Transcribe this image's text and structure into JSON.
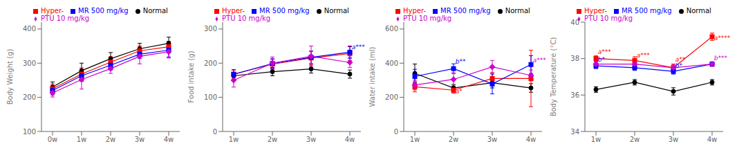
{
  "chart_data": [
    {
      "type": "line",
      "ylabel": "Body Weight (g)",
      "categories": [
        "0w",
        "1w",
        "2w",
        "3w",
        "4w"
      ],
      "ylim": [
        100,
        420
      ],
      "yticks": [
        100,
        200,
        300,
        400
      ],
      "legend": "upper left",
      "series": [
        {
          "name": "Normal",
          "color": "#000000",
          "marker": "circle",
          "values": [
            230,
            278,
            313,
            342,
            358
          ],
          "err": [
            15,
            22,
            18,
            16,
            18
          ]
        },
        {
          "name": "Hyper-",
          "color": "#FF0000",
          "marker": "square",
          "values": [
            225,
            268,
            303,
            336,
            348
          ],
          "err": [
            14,
            18,
            16,
            14,
            16
          ]
        },
        {
          "name": "MR 500 mg/kg",
          "color": "#0000FF",
          "marker": "square",
          "values": [
            220,
            263,
            294,
            326,
            338
          ],
          "err": [
            13,
            16,
            14,
            12,
            20
          ]
        },
        {
          "name": "PTU 10 mg/kg",
          "color": "#CC00CC",
          "marker": "diamond",
          "values": [
            213,
            252,
            284,
            320,
            333
          ],
          "err": [
            12,
            28,
            14,
            22,
            18
          ]
        }
      ]
    },
    {
      "type": "line",
      "ylabel": "Food intake (g)",
      "categories": [
        "1w",
        "2w",
        "3w",
        "4w"
      ],
      "ylim": [
        0,
        320
      ],
      "yticks": [
        0,
        100,
        200,
        300
      ],
      "legend": "upper left",
      "annotations": [
        {
          "text": "a***",
          "x": 3.05,
          "y": 242,
          "color": "#0000FF"
        }
      ],
      "series": [
        {
          "name": "Normal",
          "color": "#000000",
          "marker": "circle",
          "values": [
            163,
            175,
            183,
            168
          ],
          "err": [
            10,
            12,
            12,
            12
          ]
        },
        {
          "name": "Hyper-",
          "color": "#FF0000",
          "marker": "square",
          "values": [
            168,
            197,
            215,
            228
          ],
          "err": [
            12,
            14,
            20,
            20
          ]
        },
        {
          "name": "MR 500 mg/kg",
          "color": "#0000FF",
          "marker": "square",
          "values": [
            167,
            199,
            217,
            232
          ],
          "err": [
            14,
            14,
            18,
            18
          ]
        },
        {
          "name": "PTU 10 mg/kg",
          "color": "#CC00CC",
          "marker": "diamond",
          "values": [
            150,
            200,
            220,
            202
          ],
          "err": [
            20,
            18,
            30,
            15
          ]
        }
      ]
    },
    {
      "type": "line",
      "ylabel": "Water intake (ml)",
      "categories": [
        "1w",
        "2w",
        "3w",
        "4w"
      ],
      "ylim": [
        0,
        640
      ],
      "yticks": [
        0,
        200,
        400,
        600
      ],
      "legend": "upper left",
      "annotations": [
        {
          "text": "b**",
          "x": 1.05,
          "y": 395,
          "color": "#0000FF"
        },
        {
          "text": "a*",
          "x": 1.05,
          "y": 222,
          "color": "#FF0000"
        },
        {
          "text": "a***",
          "x": 3.05,
          "y": 405,
          "color": "#CC00CC"
        }
      ],
      "series": [
        {
          "name": "Normal",
          "color": "#000000",
          "marker": "circle",
          "values": [
            340,
            255,
            285,
            255
          ],
          "err": [
            55,
            20,
            30,
            25
          ]
        },
        {
          "name": "Hyper-",
          "color": "#FF0000",
          "marker": "square",
          "values": [
            262,
            242,
            310,
            310
          ],
          "err": [
            30,
            18,
            35,
            165
          ]
        },
        {
          "name": "MR 500 mg/kg",
          "color": "#0000FF",
          "marker": "square",
          "values": [
            322,
            368,
            278,
            392
          ],
          "err": [
            42,
            28,
            58,
            52
          ]
        },
        {
          "name": "PTU 10 mg/kg",
          "color": "#CC00CC",
          "marker": "diamond",
          "values": [
            272,
            305,
            378,
            328
          ],
          "err": [
            28,
            38,
            38,
            32
          ]
        }
      ]
    },
    {
      "type": "line",
      "ylabel": "Body Temperature (°C)",
      "categories": [
        "1w",
        "2w",
        "3w",
        "4w"
      ],
      "ylim": [
        34,
        40
      ],
      "yticks": [
        34,
        36,
        38,
        40
      ],
      "legend": "upper left",
      "annotations": [
        {
          "text": "a***",
          "x": 0.05,
          "y": 38.25,
          "color": "#FF0000"
        },
        {
          "text": "b*",
          "x": 0.05,
          "y": 37.85,
          "color": "#0000FF"
        },
        {
          "text": "a***",
          "x": 1.05,
          "y": 38.05,
          "color": "#FF0000"
        },
        {
          "text": "a**",
          "x": 2.05,
          "y": 37.85,
          "color": "#FF0000"
        },
        {
          "text": "b*",
          "x": 2.05,
          "y": 37.5,
          "color": "#0000FF"
        },
        {
          "text": "a****",
          "x": 3.05,
          "y": 39.0,
          "color": "#FF0000"
        },
        {
          "text": "b***",
          "x": 3.05,
          "y": 37.9,
          "color": "#CC00CC"
        }
      ],
      "series": [
        {
          "name": "Normal",
          "color": "#000000",
          "marker": "circle",
          "values": [
            36.3,
            36.7,
            36.2,
            36.7
          ],
          "err": [
            0.15,
            0.15,
            0.2,
            0.15
          ]
        },
        {
          "name": "Hyper-",
          "color": "#FF0000",
          "marker": "square",
          "values": [
            38.0,
            37.9,
            37.5,
            39.2
          ],
          "err": [
            0.15,
            0.2,
            0.2,
            0.2
          ]
        },
        {
          "name": "MR 500 mg/kg",
          "color": "#0000FF",
          "marker": "square",
          "values": [
            37.6,
            37.5,
            37.3,
            37.7
          ],
          "err": [
            0.15,
            0.15,
            0.15,
            0.12
          ]
        },
        {
          "name": "PTU 10 mg/kg",
          "color": "#CC00CC",
          "marker": "diamond",
          "values": [
            37.7,
            37.7,
            37.5,
            37.7
          ],
          "err": [
            0.12,
            0.12,
            0.15,
            0.12
          ]
        }
      ]
    }
  ]
}
